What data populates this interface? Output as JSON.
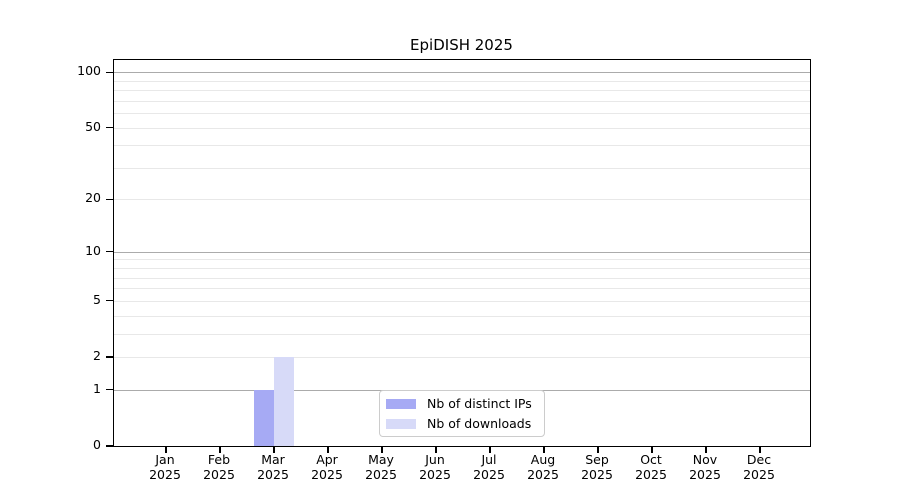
{
  "chart_data": {
    "type": "bar",
    "title": "EpiDISH 2025",
    "scale": "log1p",
    "categories": [
      "Jan",
      "Feb",
      "Mar",
      "Apr",
      "May",
      "Jun",
      "Jul",
      "Aug",
      "Sep",
      "Oct",
      "Nov",
      "Dec"
    ],
    "year": "2025",
    "series": [
      {
        "name": "Nb of distinct IPs",
        "color": "#a6aaf4",
        "values": [
          0,
          0,
          1,
          0,
          0,
          0,
          0,
          0,
          0,
          0,
          0,
          0
        ]
      },
      {
        "name": "Nb of downloads",
        "color": "#d7daf8",
        "values": [
          0,
          0,
          2,
          0,
          0,
          0,
          0,
          0,
          0,
          0,
          0,
          0
        ]
      }
    ],
    "y_tick_labels": [
      0,
      1,
      2,
      5,
      10,
      20,
      50,
      100
    ],
    "major_gridlines": [
      1,
      10,
      100
    ],
    "minor_gridlines": [
      2,
      3,
      4,
      5,
      6,
      7,
      8,
      9,
      20,
      30,
      40,
      50,
      60,
      70,
      80,
      90
    ],
    "ylim": [
      0,
      116
    ],
    "grid": "on",
    "legend_position": "lower-center",
    "colors": {
      "major_grid": "#ababab",
      "minor_grid": "#e8e8e8",
      "axis": "#000000",
      "legend_border": "#cccccc",
      "text": "#000000"
    }
  }
}
